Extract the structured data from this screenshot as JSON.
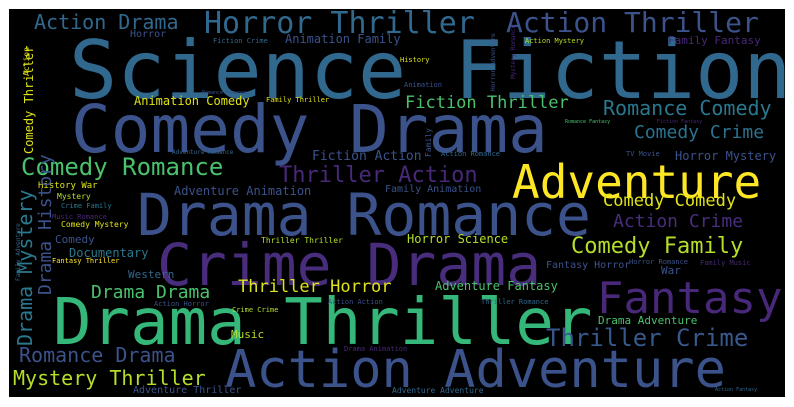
{
  "words": [
    {
      "text": "Science Fiction",
      "color": "#31688e"
    },
    {
      "text": "Comedy Drama",
      "color": "#3b528b"
    },
    {
      "text": "Drama Romance",
      "color": "#3b528b"
    },
    {
      "text": "Drama Thriller",
      "color": "#35b779"
    },
    {
      "text": "Crime Drama",
      "color": "#472d7b"
    },
    {
      "text": "Action Adventure",
      "color": "#3b528b"
    },
    {
      "text": "Adventure",
      "color": "#fde725"
    },
    {
      "text": "Fantasy",
      "color": "#482878"
    },
    {
      "text": "Horror Thriller",
      "color": "#31688e"
    },
    {
      "text": "Action Thriller",
      "color": "#3b528b"
    },
    {
      "text": "Action Drama",
      "color": "#31688e"
    },
    {
      "text": "Comedy Romance",
      "color": "#4ac16d"
    },
    {
      "text": "Thriller Action",
      "color": "#482878"
    },
    {
      "text": "Romance Comedy",
      "color": "#2a788e"
    },
    {
      "text": "Comedy Crime",
      "color": "#2c728e"
    },
    {
      "text": "Fiction Thriller",
      "color": "#4ac16d"
    },
    {
      "text": "Comedy Family",
      "color": "#b5de2b"
    },
    {
      "text": "Comedy Comedy",
      "color": "#dfe318"
    },
    {
      "text": "Action Crime",
      "color": "#472d7b"
    },
    {
      "text": "Thriller Crime",
      "color": "#38588c"
    },
    {
      "text": "Drama Drama",
      "color": "#4ac16d"
    },
    {
      "text": "Thriller Horror",
      "color": "#dfe318"
    },
    {
      "text": "Romance Drama",
      "color": "#3b528b"
    },
    {
      "text": "Mystery Thriller",
      "color": "#b5de2b"
    },
    {
      "text": "Animation Comedy",
      "color": "#dfe318"
    },
    {
      "text": "Fiction Action",
      "color": "#3b528b"
    },
    {
      "text": "Horror Mystery",
      "color": "#3b528b"
    },
    {
      "text": "Adventure Animation",
      "color": "#3b528b"
    },
    {
      "text": "Horror Science",
      "color": "#b5de2b"
    },
    {
      "text": "Adventure Fantasy",
      "color": "#4ac16d"
    },
    {
      "text": "Drama Adventure",
      "color": "#4ac16d"
    },
    {
      "text": "Animation Family",
      "color": "#3b528b"
    },
    {
      "text": "Family Fantasy",
      "color": "#482878"
    },
    {
      "text": "Documentary",
      "color": "#2a788e"
    },
    {
      "text": "Comedy",
      "color": "#3b528b"
    },
    {
      "text": "Western",
      "color": "#31688e"
    },
    {
      "text": "Music",
      "color": "#b5de2b"
    },
    {
      "text": "Horror",
      "color": "#3b528b"
    },
    {
      "text": "History",
      "color": "#dfe318"
    },
    {
      "text": "Fiction Crime",
      "color": "#31688e"
    },
    {
      "text": "Action Mystery",
      "color": "#b5de2b"
    },
    {
      "text": "Family Animation",
      "color": "#3b528b"
    },
    {
      "text": "Fantasy Horror",
      "color": "#3b528b"
    },
    {
      "text": "War",
      "color": "#3b528b"
    },
    {
      "text": "History War",
      "color": "#dfe318"
    },
    {
      "text": "Mystery",
      "color": "#b5de2b"
    },
    {
      "text": "Crime Family",
      "color": "#2a788e"
    },
    {
      "text": "Comedy Mystery",
      "color": "#dfe318"
    },
    {
      "text": "Fantasy Thriller",
      "color": "#fde725"
    },
    {
      "text": "Thriller Thriller",
      "color": "#b5de2b"
    },
    {
      "text": "Family Thriller",
      "color": "#dfe318"
    },
    {
      "text": "Action Romance",
      "color": "#31688e"
    },
    {
      "text": "Adventure Romance",
      "color": "#31688e"
    },
    {
      "text": "TV Movie",
      "color": "#3b528b"
    },
    {
      "text": "Action Horror",
      "color": "#3b528b"
    },
    {
      "text": "Action Action",
      "color": "#3b528b"
    },
    {
      "text": "Crime Crime",
      "color": "#b5de2b"
    },
    {
      "text": "Thriller Romance",
      "color": "#31688e"
    },
    {
      "text": "Drama Animation",
      "color": "#482878"
    },
    {
      "text": "Adventure Thriller",
      "color": "#3b528b"
    },
    {
      "text": "Adventure Adventure",
      "color": "#31688e"
    },
    {
      "text": "Romance Romance",
      "color": "#3b528b"
    },
    {
      "text": "Horror Romance",
      "color": "#3b528b"
    },
    {
      "text": "Family Music",
      "color": "#482878"
    },
    {
      "text": "Fiction Fantasy",
      "color": "#482878"
    },
    {
      "text": "Music Romance",
      "color": "#482878"
    },
    {
      "text": "Romance Fantasy",
      "color": "#4ac16d"
    },
    {
      "text": "Animation",
      "color": "#3b528b"
    },
    {
      "text": "Action Fantasy",
      "color": "#31688e"
    },
    {
      "text": "Drama Mystery",
      "color": "#2a788e"
    },
    {
      "text": "Drama History",
      "color": "#3b528b"
    },
    {
      "text": "Comedy Thriller",
      "color": "#dfe318"
    },
    {
      "text": "Action",
      "color": "#dfe318"
    },
    {
      "text": "Family",
      "color": "#3b528b"
    },
    {
      "text": "Horror Adventure",
      "color": "#3b528b"
    },
    {
      "text": "Mystery Romance",
      "color": "#482878"
    },
    {
      "text": "Family Adventure",
      "color": "#31688e"
    }
  ]
}
